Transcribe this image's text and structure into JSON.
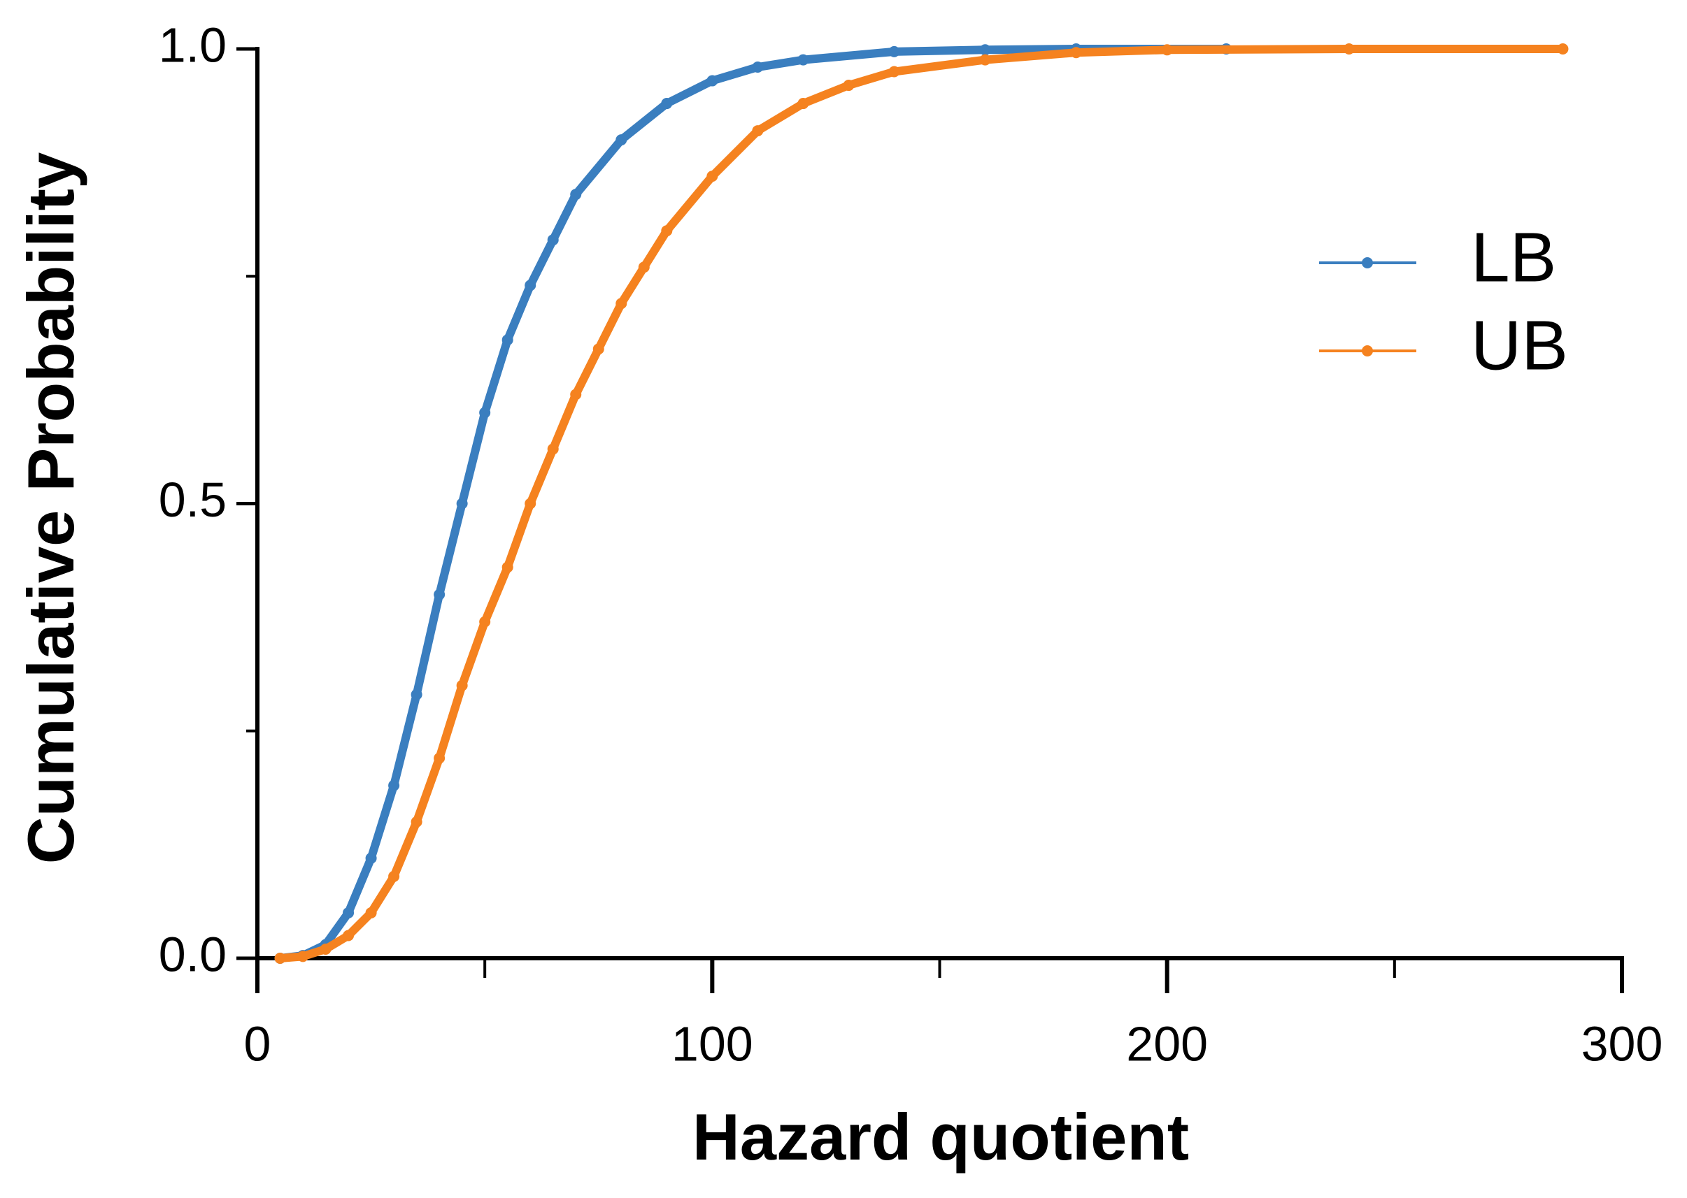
{
  "chart_data": {
    "type": "line",
    "x_label": "Hazard quotient",
    "y_label": "Cumulative Probability",
    "xlim": [
      0,
      300
    ],
    "xticks": [
      0,
      100,
      200,
      300
    ],
    "xminorticks": [
      50,
      150,
      250
    ],
    "ylim": [
      0,
      1
    ],
    "yticks": [
      {
        "value": 0,
        "label": "0.0"
      },
      {
        "value": 0.5,
        "label": "0.5"
      },
      {
        "value": 1,
        "label": "1.0"
      }
    ],
    "yminorticks": [
      0.25,
      0.75
    ],
    "legend": "upper right",
    "series": [
      {
        "name": "LB",
        "color": "#3a7ebf",
        "x": [
          5,
          10,
          15,
          20,
          25,
          30,
          35,
          40,
          45,
          50,
          55,
          60,
          65,
          70,
          80,
          90,
          100,
          110,
          120,
          140,
          160,
          180,
          213
        ],
        "values": [
          0,
          0.003,
          0.015,
          0.05,
          0.11,
          0.19,
          0.29,
          0.4,
          0.5,
          0.6,
          0.68,
          0.74,
          0.79,
          0.84,
          0.9,
          0.94,
          0.965,
          0.98,
          0.988,
          0.997,
          0.999,
          1,
          1
        ]
      },
      {
        "name": "UB",
        "color": "#f5821f",
        "x": [
          5,
          10,
          15,
          20,
          25,
          30,
          35,
          40,
          45,
          50,
          55,
          60,
          65,
          70,
          75,
          80,
          85,
          90,
          100,
          110,
          120,
          130,
          140,
          160,
          180,
          200,
          240,
          287
        ],
        "values": [
          0,
          0.002,
          0.01,
          0.025,
          0.05,
          0.09,
          0.15,
          0.22,
          0.3,
          0.37,
          0.43,
          0.5,
          0.56,
          0.62,
          0.67,
          0.72,
          0.76,
          0.8,
          0.86,
          0.91,
          0.94,
          0.96,
          0.975,
          0.988,
          0.996,
          0.999,
          1,
          1
        ]
      }
    ]
  }
}
